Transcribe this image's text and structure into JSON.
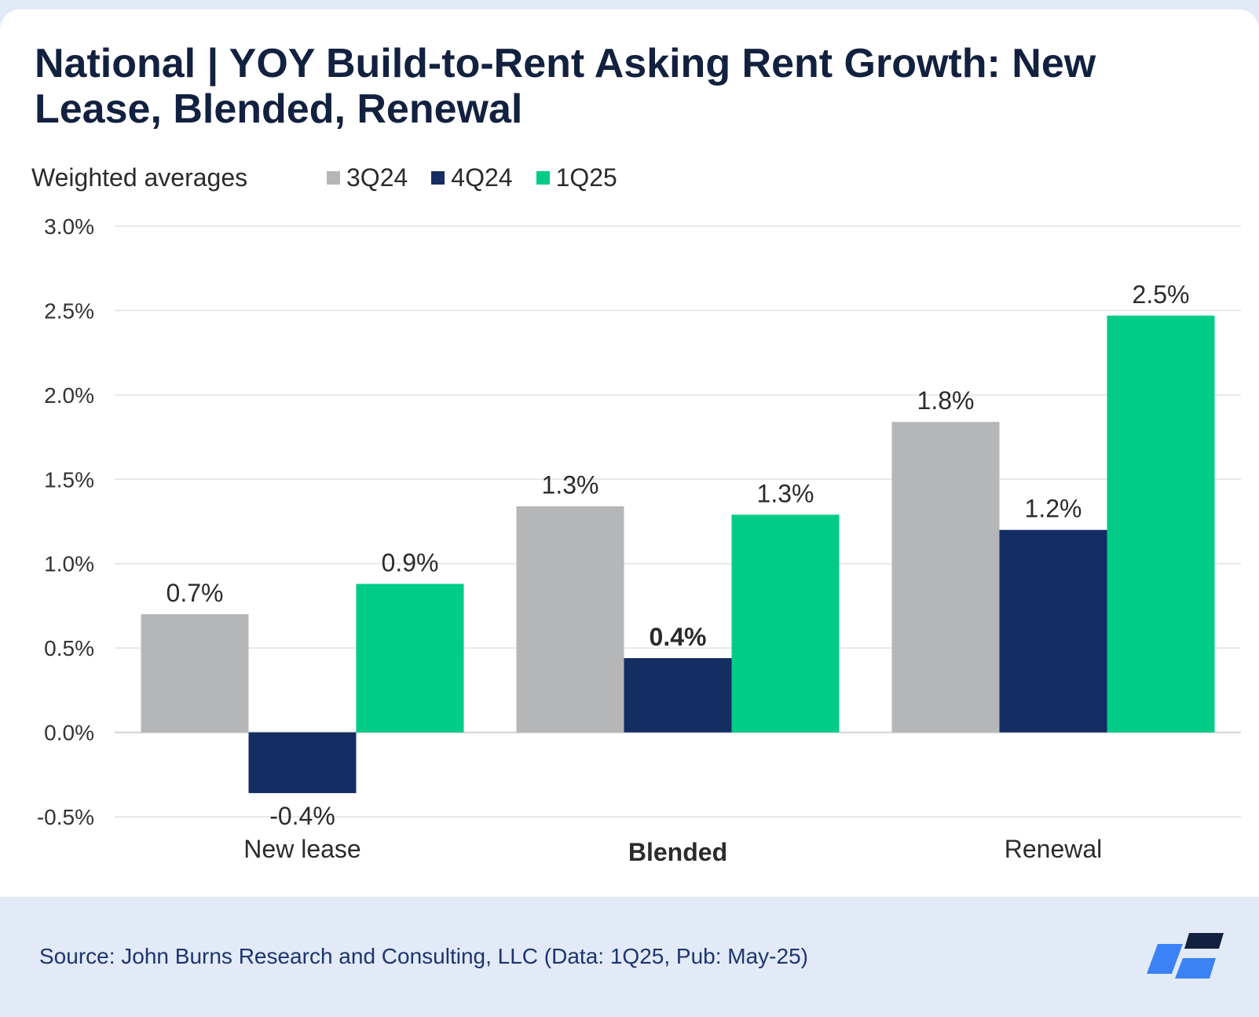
{
  "title": "National | YOY Build-to-Rent Asking Rent Growth: New Lease, Blended, Renewal",
  "subtitle": "Weighted averages",
  "legend": [
    {
      "name": "3Q24",
      "color": "#b5b6b8"
    },
    {
      "name": "4Q24",
      "color": "#142d62"
    },
    {
      "name": "1Q25",
      "color": "#00cc88"
    }
  ],
  "source": "Source: John Burns Research and Consulting, LLC (Data: 1Q25, Pub: May-25)",
  "logo_icon": "john-burns-logo-icon",
  "chart_data": {
    "type": "bar",
    "title": "National | YOY Build-to-Rent Asking Rent Growth: New Lease, Blended, Renewal",
    "subtitle": "Weighted averages",
    "categories": [
      "New lease",
      "Blended",
      "Renewal"
    ],
    "bold_category": "Blended",
    "series": [
      {
        "name": "3Q24",
        "color": "#b5b6b8",
        "values": [
          0.7,
          1.34,
          1.84
        ],
        "labels": [
          "0.7%",
          "1.3%",
          "1.8%"
        ]
      },
      {
        "name": "4Q24",
        "color": "#142d62",
        "values": [
          -0.36,
          0.44,
          1.2
        ],
        "labels": [
          "-0.4%",
          "0.4%",
          "1.2%"
        ]
      },
      {
        "name": "1Q25",
        "color": "#00cc88",
        "values": [
          0.88,
          1.29,
          2.47
        ],
        "labels": [
          "0.9%",
          "1.3%",
          "2.5%"
        ]
      }
    ],
    "bold_labels": [
      [
        false,
        false,
        false
      ],
      [
        false,
        true,
        false
      ],
      [
        false,
        false,
        false
      ]
    ],
    "ylim": [
      -0.5,
      3.0
    ],
    "yticks": [
      -0.5,
      0.0,
      0.5,
      1.0,
      1.5,
      2.0,
      2.5,
      3.0
    ],
    "ytick_labels": [
      "-0.5%",
      "0.0%",
      "0.5%",
      "1.0%",
      "1.5%",
      "2.0%",
      "2.5%",
      "3.0%"
    ],
    "grid": true,
    "legend_position": "top-left"
  }
}
